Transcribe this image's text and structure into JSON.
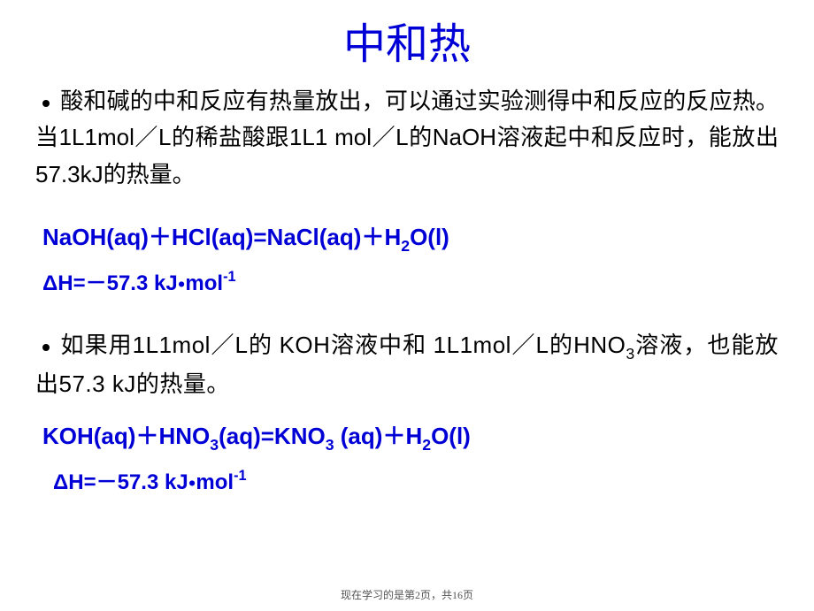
{
  "title": "中和热",
  "para1_prefix": "酸和碱的中和反应有热量放出，可以通过实验测得中和反应的反应热。当",
  "para1_mid1": "1L1mol／L",
  "para1_mid2": "的稀盐酸跟",
  "para1_mid3": "1L1 mol／L",
  "para1_mid4": "的",
  "para1_naoh": "NaOH",
  "para1_mid5": "溶液起中和反应时，能放出",
  "para1_val": "57.3kJ",
  "para1_suffix": "的热量。",
  "eq1_a": "NaOH(aq)",
  "eq1_plus1": "＋",
  "eq1_b": "HCl(aq)=NaCl(aq)",
  "eq1_plus2": "＋",
  "eq1_c": "H",
  "eq1_c_sub": "2",
  "eq1_d": "O(l)",
  "dh1_a": "ΔH=",
  "dh1_neg": "－",
  "dh1_b": "57.3 kJ",
  "dh1_dot": "●",
  "dh1_c": "mol",
  "dh1_sup": "-1",
  "para2_prefix": "如果用",
  "para2_m1": "1L1mol／L",
  "para2_m2": "的 ",
  "para2_koh": "KOH",
  "para2_m3": "溶液中和 ",
  "para2_m4": "1L1mol／L",
  "para2_m5": "的",
  "para2_hno": "HNO",
  "para2_hno_sub": "3",
  "para2_m6": "溶液，也能放出",
  "para2_val": "57.3 kJ",
  "para2_suffix": "的热量。",
  "eq2_a": "KOH(aq)",
  "eq2_plus1": "＋",
  "eq2_b": "HNO",
  "eq2_b_sub": "3",
  "eq2_c": "(aq)=KNO",
  "eq2_c_sub": "3",
  "eq2_d": " (aq)",
  "eq2_plus2": "＋",
  "eq2_e": "H",
  "eq2_e_sub": "2",
  "eq2_f": "O(l)",
  "dh2_a": "ΔH=",
  "dh2_neg": "－",
  "dh2_b": "57.3 kJ",
  "dh2_dot": "●",
  "dh2_c": "mol",
  "dh2_sup": "-1",
  "footer": "现在学习的是第2页，共16页"
}
